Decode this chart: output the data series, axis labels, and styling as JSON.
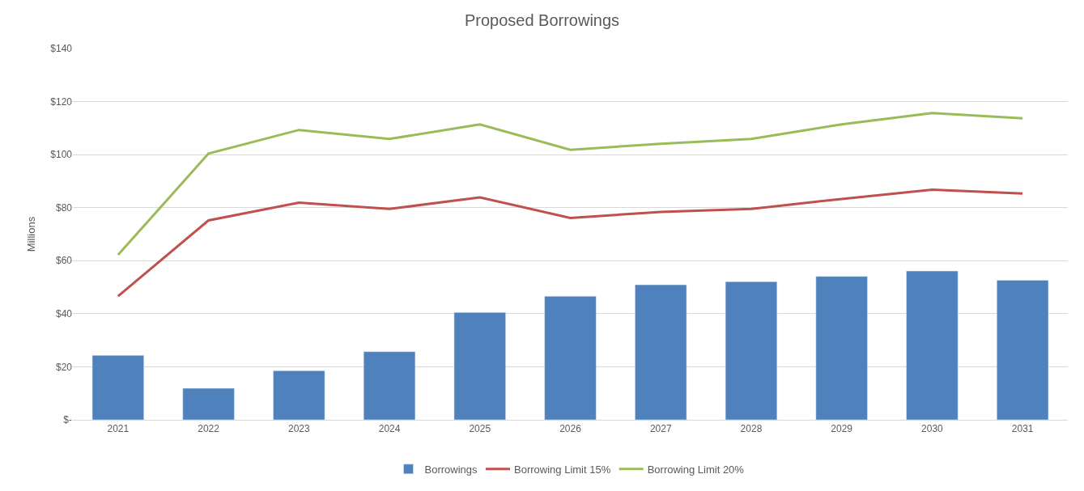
{
  "chart_data": {
    "type": "bar",
    "title": "Proposed Borrowings",
    "ylabel": "Millions",
    "categories": [
      "2021",
      "2022",
      "2023",
      "2024",
      "2025",
      "2026",
      "2027",
      "2028",
      "2029",
      "2030",
      "2031"
    ],
    "series": [
      {
        "name": "Borrowings",
        "color": "#4f81bd",
        "values": [
          24.3,
          11.9,
          18.5,
          25.7,
          40.5,
          46.6,
          50.9,
          52.1,
          54.1,
          56.1,
          52.6
        ]
      },
      {
        "name": "Borrowing Limit 15%",
        "type": "line",
        "color": "#c0504d",
        "values": [
          46.6,
          75.2,
          81.9,
          79.5,
          83.9,
          76.1,
          78.4,
          79.5,
          83.3,
          86.8,
          85.3
        ]
      },
      {
        "name": "Borrowing Limit 20%",
        "type": "line",
        "color": "#9bbb59",
        "values": [
          62.2,
          100.4,
          109.3,
          105.9,
          111.4,
          101.8,
          104.1,
          105.9,
          111.4,
          115.7,
          113.7
        ]
      }
    ],
    "ylim": [
      0,
      140
    ],
    "yticks": [
      {
        "value": 0,
        "label": "$-"
      },
      {
        "value": 20,
        "label": "$20"
      },
      {
        "value": 40,
        "label": "$40"
      },
      {
        "value": 60,
        "label": "$60"
      },
      {
        "value": 80,
        "label": "$80"
      },
      {
        "value": 100,
        "label": "$100"
      },
      {
        "value": 120,
        "label": "$120"
      },
      {
        "value": 140,
        "label": "$140"
      }
    ],
    "grid": "y",
    "legend": "bottom",
    "marker": "none",
    "line_style": "solid"
  }
}
